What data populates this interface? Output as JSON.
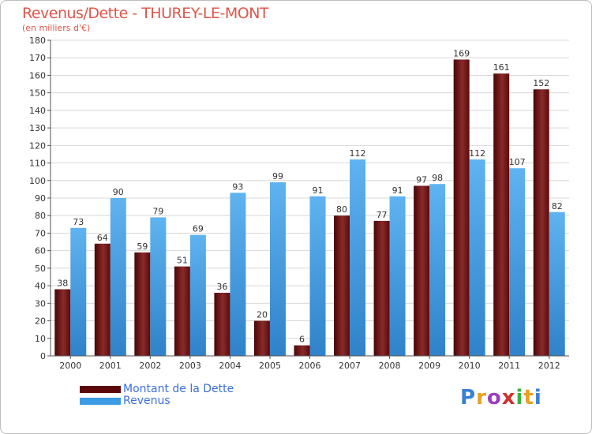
{
  "chart_data": {
    "type": "bar",
    "title": "Revenus/Dette - THUREY-LE-MONT",
    "subtitle": "(en milliers d'€)",
    "categories": [
      "2000",
      "2001",
      "2002",
      "2003",
      "2004",
      "2005",
      "2006",
      "2007",
      "2008",
      "2009",
      "2010",
      "2011",
      "2012"
    ],
    "series": [
      {
        "name": "Montant de la Dette",
        "color": "#6b0d0d",
        "values": [
          38,
          64,
          59,
          51,
          36,
          20,
          6,
          80,
          77,
          97,
          169,
          161,
          152
        ]
      },
      {
        "name": "Revenus",
        "color": "#3d9be6",
        "values": [
          73,
          90,
          79,
          69,
          93,
          99,
          91,
          112,
          91,
          98,
          112,
          107,
          82
        ]
      }
    ],
    "ylim": [
      0,
      180
    ],
    "yticks": [
      0,
      10,
      20,
      30,
      40,
      50,
      60,
      70,
      80,
      90,
      100,
      110,
      120,
      130,
      140,
      150,
      160,
      170,
      180
    ],
    "grid": true,
    "legend_position": "bottom-left"
  },
  "legend": {
    "debt_label": "Montant de la Dette",
    "revenue_label": "Revenus"
  },
  "logo": {
    "letters": [
      "P",
      "r",
      "o",
      "x",
      "i",
      "t",
      "i"
    ],
    "colors": [
      "#3a7fd5",
      "#e8a020",
      "#9a3fc0",
      "#d03030",
      "#3ab040",
      "#e8a020",
      "#3a7fd5"
    ]
  }
}
